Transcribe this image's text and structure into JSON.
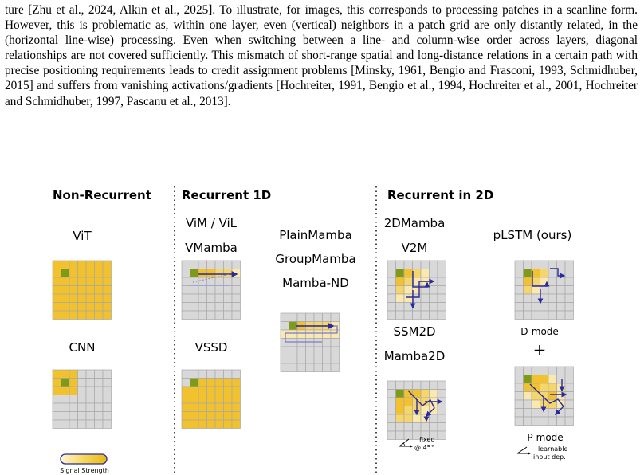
{
  "paragraph": "ture [Zhu et al., 2024, Alkin et al., 2025]. To illustrate, for images, this corresponds to processing patches in a scanline form. However, this is problematic as, within one layer, even (vertical) neighbors in a patch grid are only distantly related, in the (horizontal line-wise) processing. Even when switching between a line- and column-wise order across layers, diagonal relationships are not covered sufficiently. This mismatch of short-range spatial and long-distance relations in a certain path with precise positioning requirements leads to credit assignment problems [Minsky, 1961, Bengio and Frasconi, 1993, Schmidhuber, 2015] and suffers from vanishing activations/gradients [Hochreiter, 1991, Bengio et al., 1994, Hochreiter et al., 2001, Hochreiter and Schmidhuber, 1997, Pascanu et al., 2013].",
  "figure": {
    "sections": {
      "non_recurrent": "Non-Recurrent",
      "recurrent_1d": "Recurrent 1D",
      "recurrent_2d": "Recurrent in 2D"
    },
    "labels": {
      "vit": "ViT",
      "cnn": "CNN",
      "vim_vil": "ViM / ViL",
      "vmamba": "VMamba",
      "vssd": "VSSD",
      "plainmamba": "PlainMamba",
      "groupmamba": "GroupMamba",
      "mamba_nd": "Mamba-ND",
      "mamba2d_top": "2DMamba",
      "v2m": "V2M",
      "ssm2d": "SSM2D",
      "mamba2d": "Mamba2D",
      "plstm": "pLSTM (ours)",
      "d_mode": "D-mode",
      "plus": "+",
      "p_mode": "P-mode",
      "signal_strength": "Signal Strength",
      "fixed_line1": "fixed",
      "fixed_line2": "@ 45°",
      "learnable_line1": "learnable",
      "learnable_line2": "input dep."
    },
    "colors": {
      "grid_empty": "#d8d8d8",
      "signal_high": "#f2c12e",
      "signal_mid": "#f6d66a",
      "signal_low": "#f9e9b0",
      "origin": "#7f9a18",
      "arrow": "#2a2a9a",
      "arrow_light": "#9a9ae6"
    }
  }
}
